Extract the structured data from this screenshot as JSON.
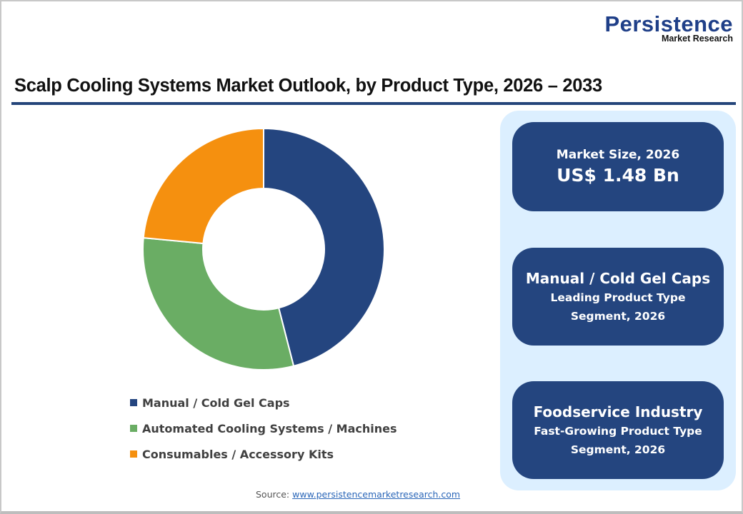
{
  "logo": {
    "main": "Persistence",
    "sub": "Market Research"
  },
  "title": "Scalp Cooling Systems Market Outlook, by Product Type, 2026 – 2033",
  "colors": {
    "navy": "#24457f",
    "green": "#6aad64",
    "orange": "#f5900f",
    "panel_bg": "#dcefff",
    "title_rule": "#24457a"
  },
  "chart_data": {
    "type": "pie",
    "subtype": "donut",
    "title": "Scalp Cooling Systems Market Outlook, by Product Type, 2026 – 2033",
    "categories": [
      "Manual / Cold Gel Caps",
      "Automated Cooling Systems / Machines",
      "Consumables / Accessory Kits"
    ],
    "values": [
      46.0,
      30.5,
      23.5
    ],
    "unit": "% share (estimated from slice angles)",
    "colors": [
      "#24457f",
      "#6aad64",
      "#f5900f"
    ],
    "start_angle_deg": 0,
    "direction": "clockwise",
    "inner_radius_ratio": 0.5,
    "legend_position": "bottom"
  },
  "legend": {
    "items": [
      {
        "label": "Manual / Cold Gel Caps",
        "color": "#24457f"
      },
      {
        "label": "Automated Cooling Systems / Machines",
        "color": "#6aad64"
      },
      {
        "label": "Consumables / Accessory Kits",
        "color": "#f5900f"
      }
    ]
  },
  "cards": {
    "market_size": {
      "label": "Market Size, 2026",
      "value": "US$ 1.48 Bn"
    },
    "leading": {
      "head": "Manual / Cold Gel Caps",
      "sub1": "Leading Product Type",
      "sub2": "Segment, 2026"
    },
    "fast_growing": {
      "head": "Foodservice Industry",
      "sub1": "Fast-Growing Product Type",
      "sub2": "Segment, 2026"
    }
  },
  "source": {
    "prefix": "Source: ",
    "link": "www.persistencemarketresearch.com"
  }
}
